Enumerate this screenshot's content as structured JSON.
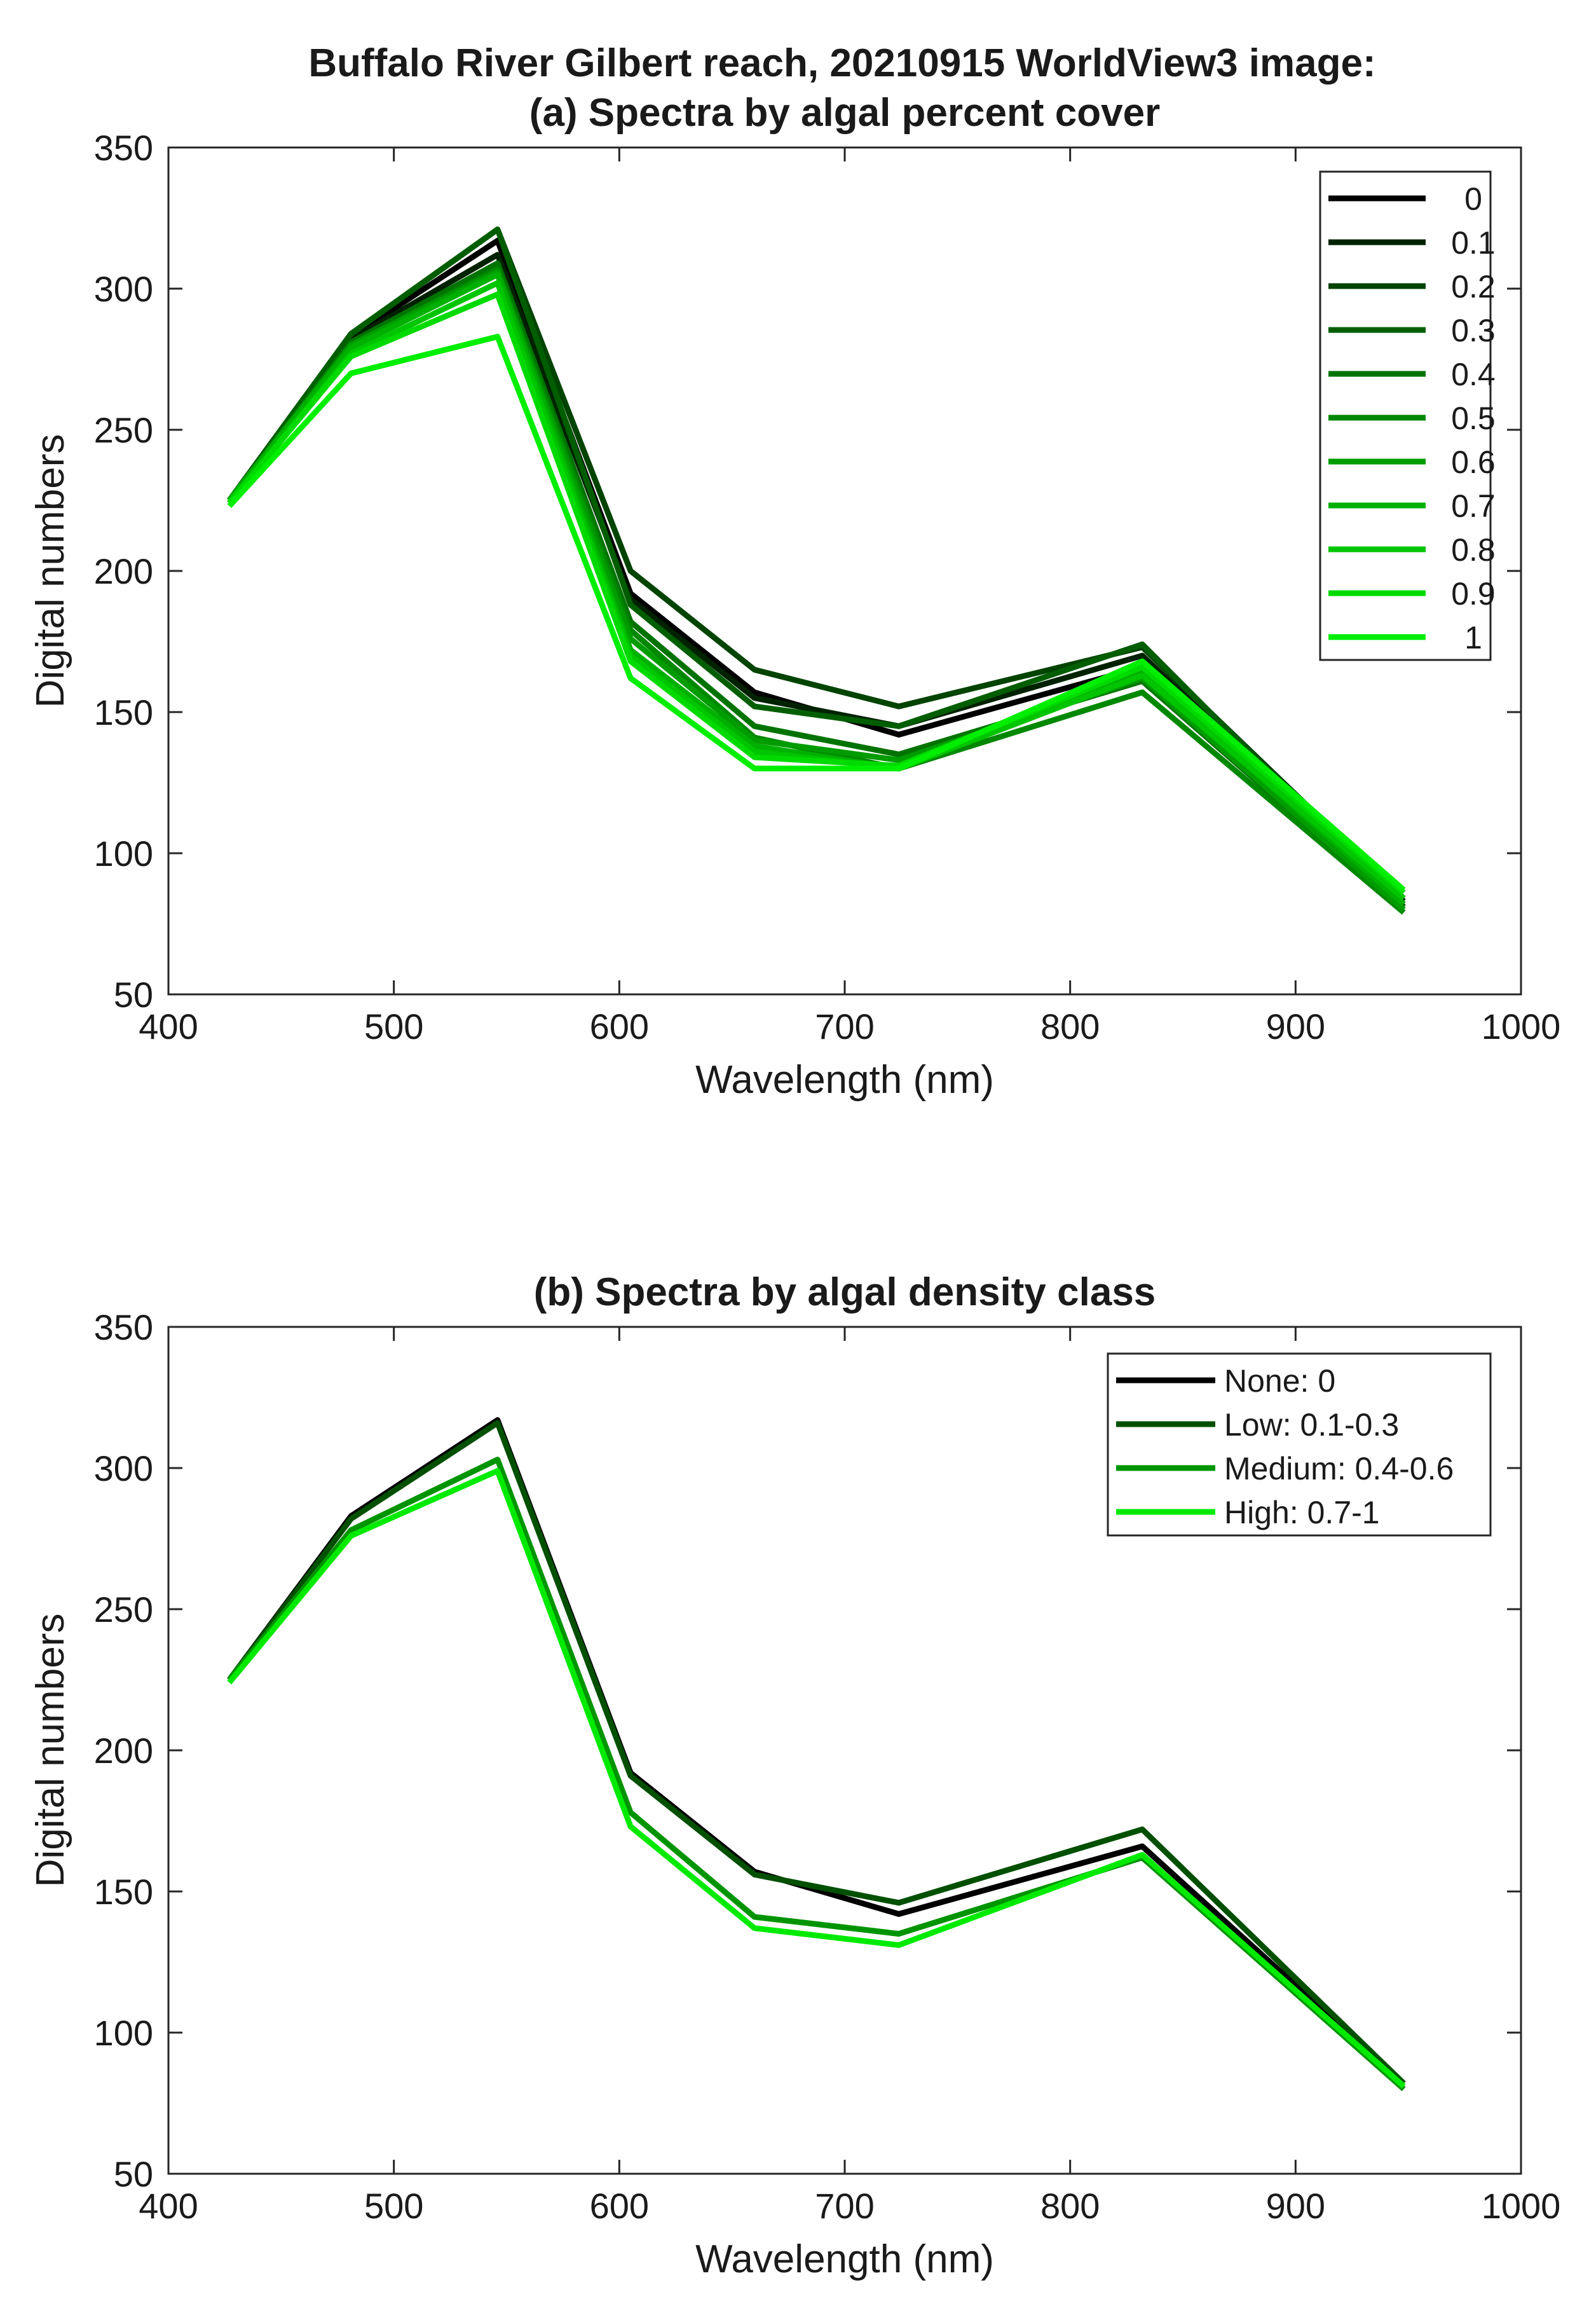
{
  "figure_title_line1": "Buffalo River Gilbert reach, 20210915 WorldView3 image:",
  "chart_data": [
    {
      "type": "line",
      "title": "(a) Spectra by algal percent cover",
      "xlabel": "Wavelength (nm)",
      "ylabel": "Digital numbers",
      "xlim": [
        400,
        1000
      ],
      "ylim": [
        50,
        350
      ],
      "xticks": [
        400,
        500,
        600,
        700,
        800,
        900,
        1000
      ],
      "yticks": [
        50,
        100,
        150,
        200,
        250,
        300,
        350
      ],
      "legend_position": "top-right",
      "x": [
        427,
        481,
        546,
        605,
        660,
        724,
        832,
        948
      ],
      "series": [
        {
          "name": "0",
          "color": "#000000",
          "values": [
            225,
            283,
            317,
            192,
            157,
            142,
            166,
            82
          ]
        },
        {
          "name": "0.1",
          "color": "#002200",
          "values": [
            225,
            282,
            312,
            190,
            155,
            145,
            170,
            83
          ]
        },
        {
          "name": "0.2",
          "color": "#004400",
          "values": [
            225,
            284,
            321,
            200,
            165,
            152,
            173,
            84
          ]
        },
        {
          "name": "0.3",
          "color": "#005e00",
          "values": [
            225,
            284,
            321,
            188,
            152,
            145,
            174,
            81
          ]
        },
        {
          "name": "0.4",
          "color": "#007300",
          "values": [
            225,
            281,
            309,
            182,
            145,
            135,
            161,
            80
          ]
        },
        {
          "name": "0.5",
          "color": "#008800",
          "values": [
            225,
            280,
            307,
            179,
            141,
            130,
            157,
            79
          ]
        },
        {
          "name": "0.6",
          "color": "#009c00",
          "values": [
            225,
            280,
            306,
            176,
            140,
            133,
            162,
            80
          ]
        },
        {
          "name": "0.7",
          "color": "#00b000",
          "values": [
            225,
            279,
            305,
            172,
            138,
            130,
            164,
            82
          ]
        },
        {
          "name": "0.8",
          "color": "#00c500",
          "values": [
            224,
            277,
            302,
            170,
            136,
            130,
            163,
            84
          ]
        },
        {
          "name": "0.9",
          "color": "#00da00",
          "values": [
            224,
            276,
            298,
            168,
            134,
            131,
            166,
            86
          ]
        },
        {
          "name": "1",
          "color": "#00ee00",
          "values": [
            223,
            270,
            283,
            162,
            130,
            130,
            168,
            87
          ]
        }
      ]
    },
    {
      "type": "line",
      "title": "(b) Spectra by algal density class",
      "xlabel": "Wavelength (nm)",
      "ylabel": "Digital numbers",
      "xlim": [
        400,
        1000
      ],
      "ylim": [
        50,
        350
      ],
      "xticks": [
        400,
        500,
        600,
        700,
        800,
        900,
        1000
      ],
      "yticks": [
        50,
        100,
        150,
        200,
        250,
        300,
        350
      ],
      "legend_position": "top-right",
      "x": [
        427,
        481,
        546,
        605,
        660,
        724,
        832,
        948
      ],
      "series": [
        {
          "name": "None: 0",
          "color": "#000000",
          "values": [
            225,
            283,
            317,
            192,
            157,
            142,
            166,
            82
          ]
        },
        {
          "name": "Low: 0.1-0.3",
          "color": "#005000",
          "values": [
            225,
            282,
            316,
            191,
            156,
            146,
            172,
            82
          ]
        },
        {
          "name": "Medium: 0.4-0.6",
          "color": "#009400",
          "values": [
            225,
            278,
            303,
            178,
            141,
            135,
            162,
            80
          ]
        },
        {
          "name": "High: 0.7-1",
          "color": "#00ea00",
          "values": [
            224,
            276,
            299,
            173,
            137,
            131,
            163,
            81
          ]
        }
      ]
    }
  ]
}
